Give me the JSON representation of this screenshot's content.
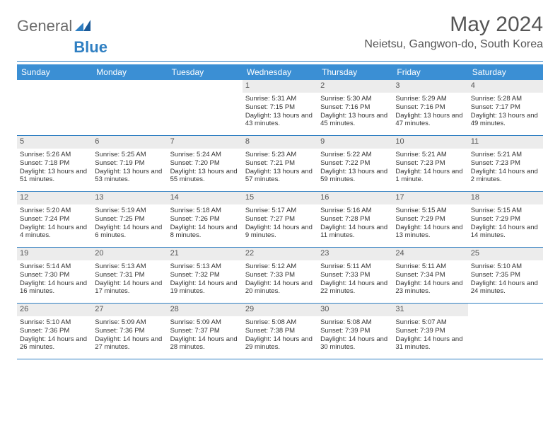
{
  "logo": {
    "text1": "General",
    "text2": "Blue"
  },
  "title": "May 2024",
  "location": "Neietsu, Gangwon-do, South Korea",
  "colors": {
    "headerBar": "#3b8fd4",
    "rule": "#2f7fc2",
    "dayShade": "#ececec",
    "logoBlue": "#2f7fc2",
    "text": "#333333"
  },
  "dayNames": [
    "Sunday",
    "Monday",
    "Tuesday",
    "Wednesday",
    "Thursday",
    "Friday",
    "Saturday"
  ],
  "weeks": [
    [
      {
        "empty": true
      },
      {
        "empty": true
      },
      {
        "empty": true
      },
      {
        "n": "1",
        "sr": "Sunrise: 5:31 AM",
        "ss": "Sunset: 7:15 PM",
        "dl": "Daylight: 13 hours and 43 minutes."
      },
      {
        "n": "2",
        "sr": "Sunrise: 5:30 AM",
        "ss": "Sunset: 7:16 PM",
        "dl": "Daylight: 13 hours and 45 minutes."
      },
      {
        "n": "3",
        "sr": "Sunrise: 5:29 AM",
        "ss": "Sunset: 7:16 PM",
        "dl": "Daylight: 13 hours and 47 minutes."
      },
      {
        "n": "4",
        "sr": "Sunrise: 5:28 AM",
        "ss": "Sunset: 7:17 PM",
        "dl": "Daylight: 13 hours and 49 minutes."
      }
    ],
    [
      {
        "n": "5",
        "sr": "Sunrise: 5:26 AM",
        "ss": "Sunset: 7:18 PM",
        "dl": "Daylight: 13 hours and 51 minutes."
      },
      {
        "n": "6",
        "sr": "Sunrise: 5:25 AM",
        "ss": "Sunset: 7:19 PM",
        "dl": "Daylight: 13 hours and 53 minutes."
      },
      {
        "n": "7",
        "sr": "Sunrise: 5:24 AM",
        "ss": "Sunset: 7:20 PM",
        "dl": "Daylight: 13 hours and 55 minutes."
      },
      {
        "n": "8",
        "sr": "Sunrise: 5:23 AM",
        "ss": "Sunset: 7:21 PM",
        "dl": "Daylight: 13 hours and 57 minutes."
      },
      {
        "n": "9",
        "sr": "Sunrise: 5:22 AM",
        "ss": "Sunset: 7:22 PM",
        "dl": "Daylight: 13 hours and 59 minutes."
      },
      {
        "n": "10",
        "sr": "Sunrise: 5:21 AM",
        "ss": "Sunset: 7:23 PM",
        "dl": "Daylight: 14 hours and 1 minute."
      },
      {
        "n": "11",
        "sr": "Sunrise: 5:21 AM",
        "ss": "Sunset: 7:23 PM",
        "dl": "Daylight: 14 hours and 2 minutes."
      }
    ],
    [
      {
        "n": "12",
        "sr": "Sunrise: 5:20 AM",
        "ss": "Sunset: 7:24 PM",
        "dl": "Daylight: 14 hours and 4 minutes."
      },
      {
        "n": "13",
        "sr": "Sunrise: 5:19 AM",
        "ss": "Sunset: 7:25 PM",
        "dl": "Daylight: 14 hours and 6 minutes."
      },
      {
        "n": "14",
        "sr": "Sunrise: 5:18 AM",
        "ss": "Sunset: 7:26 PM",
        "dl": "Daylight: 14 hours and 8 minutes."
      },
      {
        "n": "15",
        "sr": "Sunrise: 5:17 AM",
        "ss": "Sunset: 7:27 PM",
        "dl": "Daylight: 14 hours and 9 minutes."
      },
      {
        "n": "16",
        "sr": "Sunrise: 5:16 AM",
        "ss": "Sunset: 7:28 PM",
        "dl": "Daylight: 14 hours and 11 minutes."
      },
      {
        "n": "17",
        "sr": "Sunrise: 5:15 AM",
        "ss": "Sunset: 7:29 PM",
        "dl": "Daylight: 14 hours and 13 minutes."
      },
      {
        "n": "18",
        "sr": "Sunrise: 5:15 AM",
        "ss": "Sunset: 7:29 PM",
        "dl": "Daylight: 14 hours and 14 minutes."
      }
    ],
    [
      {
        "n": "19",
        "sr": "Sunrise: 5:14 AM",
        "ss": "Sunset: 7:30 PM",
        "dl": "Daylight: 14 hours and 16 minutes."
      },
      {
        "n": "20",
        "sr": "Sunrise: 5:13 AM",
        "ss": "Sunset: 7:31 PM",
        "dl": "Daylight: 14 hours and 17 minutes."
      },
      {
        "n": "21",
        "sr": "Sunrise: 5:13 AM",
        "ss": "Sunset: 7:32 PM",
        "dl": "Daylight: 14 hours and 19 minutes."
      },
      {
        "n": "22",
        "sr": "Sunrise: 5:12 AM",
        "ss": "Sunset: 7:33 PM",
        "dl": "Daylight: 14 hours and 20 minutes."
      },
      {
        "n": "23",
        "sr": "Sunrise: 5:11 AM",
        "ss": "Sunset: 7:33 PM",
        "dl": "Daylight: 14 hours and 22 minutes."
      },
      {
        "n": "24",
        "sr": "Sunrise: 5:11 AM",
        "ss": "Sunset: 7:34 PM",
        "dl": "Daylight: 14 hours and 23 minutes."
      },
      {
        "n": "25",
        "sr": "Sunrise: 5:10 AM",
        "ss": "Sunset: 7:35 PM",
        "dl": "Daylight: 14 hours and 24 minutes."
      }
    ],
    [
      {
        "n": "26",
        "sr": "Sunrise: 5:10 AM",
        "ss": "Sunset: 7:36 PM",
        "dl": "Daylight: 14 hours and 26 minutes."
      },
      {
        "n": "27",
        "sr": "Sunrise: 5:09 AM",
        "ss": "Sunset: 7:36 PM",
        "dl": "Daylight: 14 hours and 27 minutes."
      },
      {
        "n": "28",
        "sr": "Sunrise: 5:09 AM",
        "ss": "Sunset: 7:37 PM",
        "dl": "Daylight: 14 hours and 28 minutes."
      },
      {
        "n": "29",
        "sr": "Sunrise: 5:08 AM",
        "ss": "Sunset: 7:38 PM",
        "dl": "Daylight: 14 hours and 29 minutes."
      },
      {
        "n": "30",
        "sr": "Sunrise: 5:08 AM",
        "ss": "Sunset: 7:39 PM",
        "dl": "Daylight: 14 hours and 30 minutes."
      },
      {
        "n": "31",
        "sr": "Sunrise: 5:07 AM",
        "ss": "Sunset: 7:39 PM",
        "dl": "Daylight: 14 hours and 31 minutes."
      },
      {
        "empty": true
      }
    ]
  ]
}
